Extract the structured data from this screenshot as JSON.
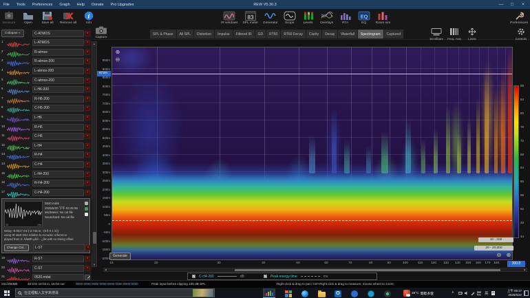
{
  "window": {
    "title": "REW V5.30.3",
    "controls": [
      {
        "name": "minimize",
        "glyph": "—"
      },
      {
        "name": "maximize",
        "glyph": "□"
      },
      {
        "name": "close",
        "glyph": "×"
      }
    ]
  },
  "menu": {
    "items": [
      "File",
      "Tools",
      "Preferences",
      "Graph",
      "Help",
      "Donate",
      "Pro Upgrades"
    ]
  },
  "toolbar": {
    "left": [
      {
        "label": "Measure",
        "icon": "measure-icon",
        "dim": true
      },
      {
        "label": "Open",
        "icon": "open-icon"
      },
      {
        "label": "Save all",
        "icon": "save-all-icon"
      },
      {
        "label": "Remove all",
        "icon": "remove-all-icon"
      },
      {
        "label": "Info",
        "icon": "info-icon"
      }
    ],
    "right": [
      {
        "label": "IR windows",
        "icon": "ir-windows-icon"
      },
      {
        "label": "SPL meter",
        "icon": "spl-meter-icon"
      },
      {
        "label": "Generator",
        "icon": "generator-icon"
      },
      {
        "label": "Scope",
        "icon": "scope-icon"
      },
      {
        "label": "Levels",
        "icon": "levels-icon"
      },
      {
        "label": "Overlays",
        "icon": "overlays-icon"
      },
      {
        "label": "RTA",
        "icon": "rta-icon"
      },
      {
        "label": "EQ",
        "icon": "eq-icon"
      },
      {
        "label": "Room sim",
        "icon": "room-sim-icon"
      }
    ],
    "spl_value": "83",
    "preferences_label": "Preferences"
  },
  "tabs": {
    "items": [
      "SPL & Phase",
      "All SPL",
      "Distortion",
      "Impulse",
      "Filtered IR",
      "GD",
      "RT60",
      "RT60 Decay",
      "Clarity",
      "Decay",
      "Waterfall",
      "Spectrogram",
      "Captured"
    ],
    "active": "Spectrogram"
  },
  "graph_buttons": [
    {
      "label": "Scrollbars",
      "icon": "scrollbars-icon"
    },
    {
      "label": "Freq. Axis",
      "icon": "freq-axis-icon"
    },
    {
      "label": "Limits",
      "icon": "limits-icon"
    }
  ],
  "controls_button": {
    "label": "Controls",
    "icon": "controls-icon"
  },
  "sidebar": {
    "collapse_label": "Collapse «",
    "capture_label": "Capture",
    "measurements": [
      {
        "num": "",
        "name": "C-ATMOS",
        "color": "#d04040"
      },
      {
        "num": "1",
        "name": "L-ATMOS",
        "color": "#e04040"
      },
      {
        "num": "2",
        "name": "R-atmos",
        "color": "#40b050"
      },
      {
        "num": "3",
        "name": "R-atmos-200",
        "color": "#4868d8"
      },
      {
        "num": "4",
        "name": "L-atmos-200",
        "color": "#d08a30"
      },
      {
        "num": "5",
        "name": "C-atmos-200",
        "color": "#40c060"
      },
      {
        "num": "6",
        "name": "L-H6-200",
        "color": "#5585c5"
      },
      {
        "num": "7",
        "name": "R-H6-200",
        "color": "#c87830"
      },
      {
        "num": "8",
        "name": "C-H6-200",
        "color": "#30b0a0"
      },
      {
        "num": "9",
        "name": "L-H6",
        "color": "#7050c8"
      },
      {
        "num": "10",
        "name": "R-H6",
        "color": "#a060d8"
      },
      {
        "num": "11",
        "name": "C-H6",
        "color": "#d84060"
      },
      {
        "num": "12",
        "name": "L-H4",
        "color": "#50c050"
      },
      {
        "num": "13",
        "name": "R-H4",
        "color": "#4870d8"
      },
      {
        "num": "14",
        "name": "C-H4",
        "color": "#d09030"
      },
      {
        "num": "15",
        "name": "L-H4-200",
        "color": "#48c048"
      },
      {
        "num": "16",
        "name": "R-H4-200",
        "color": "#4868d0"
      },
      {
        "num": "17",
        "name": "C-H4-200",
        "color": "#30c0c0"
      },
      {
        "num": "19",
        "name": "R-ST",
        "color": "#9060c8"
      },
      {
        "num": "20",
        "name": "C-ST",
        "color": "#c850a0"
      },
      {
        "num": "21",
        "name": "0520.mdat",
        "color": "#d04040",
        "icon": "edit"
      }
    ],
    "info_popup": {
      "file": "0520.mdat",
      "datetime": "2025/5/20 下午 03:45:58",
      "mic": "Mic/Meter: No cal file",
      "soundcard": "Soundcard: No cal file",
      "delay_line1": "Delay -8.0017 ms (-2.745 m, -(9 ft 0.1 in))",
      "delay_line2": "using IR start time relative to Acoustic reference",
      "delay_line3": "played from 3: Àâ¥Ø²-µßÂ - ¿å¥ with no timing offset",
      "change_cal_label": "Change Cal...",
      "row_name": "L-ST",
      "thumb_axis_left": "20",
      "thumb_axis_right": "19k"
    }
  },
  "chart": {
    "type": "spectrogram",
    "generate_label": "Generate",
    "y_axis": [
      {
        "t": 950,
        "label": "950m"
      },
      {
        "t": 900,
        "label": "900m"
      },
      {
        "t": 850,
        "label": "850m"
      },
      {
        "t": 800,
        "label": "800m"
      },
      {
        "t": 750,
        "label": "750m"
      },
      {
        "t": 700,
        "label": "700m"
      },
      {
        "t": 650,
        "label": "650m"
      },
      {
        "t": 600,
        "label": "600m"
      },
      {
        "t": 550,
        "label": "550m"
      },
      {
        "t": 500,
        "label": "500m"
      },
      {
        "t": 450,
        "label": "450m"
      },
      {
        "t": 400,
        "label": "400m"
      },
      {
        "t": 350,
        "label": "350m"
      },
      {
        "t": 300,
        "label": "300m"
      },
      {
        "t": 250,
        "label": "250m"
      },
      {
        "t": 200,
        "label": "200m"
      },
      {
        "t": 150,
        "label": "150m"
      },
      {
        "t": 100,
        "label": "100m"
      },
      {
        "t": 50,
        "label": "50m"
      },
      {
        "t": 0,
        "label": "0"
      },
      {
        "t": -50,
        "label": "-50m"
      },
      {
        "t": -100,
        "label": "-100m"
      },
      {
        "t": -150,
        "label": "-150m"
      },
      {
        "t": -200,
        "label": "-200m"
      }
    ],
    "y_cursor": "872m",
    "x_axis": [
      {
        "f": 15,
        "label": "15"
      },
      {
        "f": 20,
        "label": "20"
      },
      {
        "f": 30,
        "label": "30"
      },
      {
        "f": 40,
        "label": "40"
      },
      {
        "f": 50,
        "label": "50"
      },
      {
        "f": 60,
        "label": "60"
      },
      {
        "f": 70,
        "label": "70"
      },
      {
        "f": 80,
        "label": "80"
      },
      {
        "f": 90,
        "label": "90"
      },
      {
        "f": 100,
        "label": "100"
      },
      {
        "f": 110,
        "label": "110"
      },
      {
        "f": 120,
        "label": "120"
      },
      {
        "f": 130,
        "label": "130"
      },
      {
        "f": 140,
        "label": "140"
      },
      {
        "f": 150,
        "label": "150"
      },
      {
        "f": 160,
        "label": "160"
      },
      {
        "f": 170,
        "label": "170"
      },
      {
        "f": 180,
        "label": "180"
      }
    ],
    "x_cursor": "200.0",
    "scale_labels": [
      "88",
      "84",
      "80",
      "76",
      "72",
      "68",
      "64",
      "60",
      "56",
      "52",
      "48",
      "44"
    ],
    "range_freq": "10 - 200",
    "range_full": "20 - 20,000",
    "legend": {
      "series1": "C-H4-200",
      "series1_unit": "dB",
      "series2": "Peak energy time",
      "series2_unit": "ms"
    }
  },
  "statusbar": {
    "memory": "231/266MB",
    "format": "48 kHz   16-bit in, 16-bit out",
    "digits": "0000 0000   0000 0000   0000 0000   0000 0000",
    "peak": "Peak input before clipping 105 dB SPL",
    "hint": "Right click & drag to pan; Ctrl+Right click & drag to measure; mouse wheel to zoom;"
  },
  "taskbar": {
    "search_text": "在這裡輸入文字來搜尋",
    "apps": [
      "pinwheel-icon",
      "edge-icon",
      "explorer-icon",
      "outlook-icon",
      "blue-app-icon",
      "teal-app-icon",
      "dark-app-icon"
    ],
    "weather_temp": "25°C",
    "weather_desc": "間歇多雲",
    "ime": "英",
    "clock_time": "上午 05:17",
    "clock_date": "2025/5/22"
  }
}
